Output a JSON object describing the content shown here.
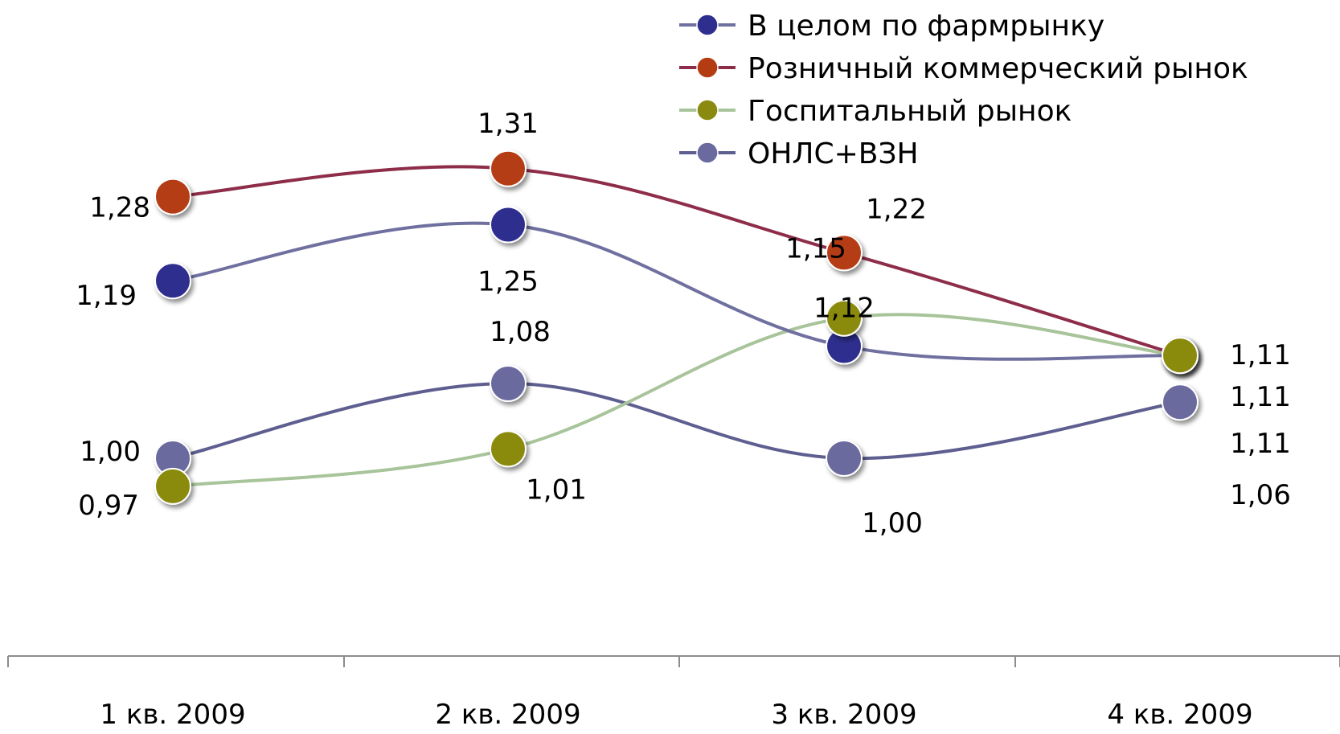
{
  "chart_data": {
    "type": "line",
    "title": "",
    "xlabel": "",
    "ylabel": "",
    "categories": [
      "1 кв. 2009",
      "2 кв. 2009",
      "3 кв. 2009",
      "4 кв. 2009"
    ],
    "ylim": [
      0.9,
      1.35
    ],
    "grid": false,
    "legend_position": "top-right",
    "smooth": true,
    "series": [
      {
        "name": "В целом по фармрынку",
        "values": [
          1.19,
          1.25,
          1.12,
          1.11
        ],
        "labels": [
          "1,19",
          "1,25",
          "1,12",
          "1,11"
        ],
        "color": "#2E2E8F",
        "line_color": "#7070A0"
      },
      {
        "name": "Розничный коммерческий рынок",
        "values": [
          1.28,
          1.31,
          1.22,
          1.11
        ],
        "labels": [
          "1,28",
          "1,31",
          "1,22",
          "1,11"
        ],
        "color": "#B43C12",
        "line_color": "#8E2D4A"
      },
      {
        "name": "Госпитальный рынок",
        "values": [
          0.97,
          1.01,
          1.15,
          1.11
        ],
        "labels": [
          "0,97",
          "1,01",
          "1,15",
          "1,11"
        ],
        "color": "#8A8A10",
        "line_color": "#A8C49A"
      },
      {
        "name": "ОНЛС+ВЗН",
        "values": [
          1.0,
          1.08,
          1.0,
          1.06
        ],
        "labels": [
          "1,00",
          "1,08",
          "1,00",
          "1,06"
        ],
        "color": "#6A6A9E",
        "line_color": "#5E5E90"
      }
    ]
  }
}
